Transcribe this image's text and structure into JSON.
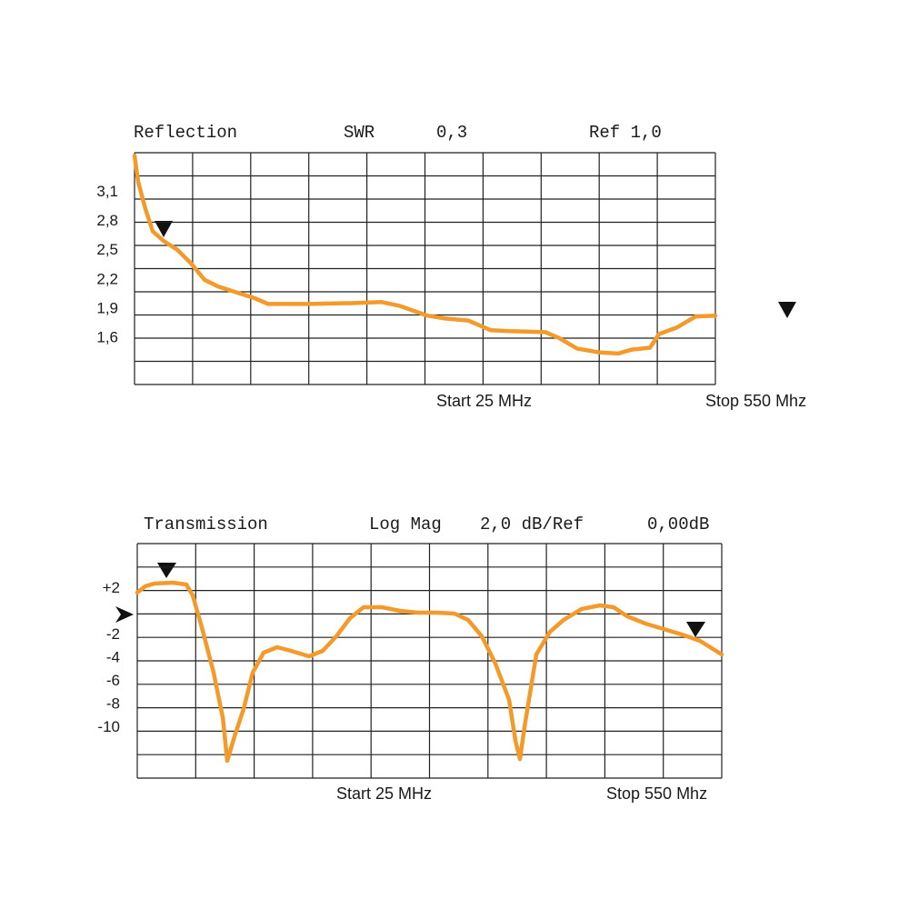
{
  "chart_data": [
    {
      "type": "line",
      "title": "Reflection",
      "format": "SWR",
      "scale": "0,3",
      "reference": "Ref 1,0",
      "start_label": "Start 25 MHz",
      "stop_label": "Stop 550 Mhz",
      "x": [
        25.0,
        28.3,
        34.9,
        41.4,
        51.3,
        63.6,
        75.9,
        88.3,
        100.6,
        117.0,
        133.5,
        145.8,
        182.7,
        223.8,
        248.5,
        264.9,
        289.6,
        306.0,
        326.5,
        347.1,
        363.5,
        396.4,
        408.7,
        425.1,
        445.7,
        462.1,
        474.4,
        490.9,
        499.1,
        515.5,
        532.0,
        550.0
      ],
      "series": [
        {
          "color": "#f39a2b",
          "values": [
            3.48,
            3.21,
            2.93,
            2.7,
            2.6,
            2.51,
            2.37,
            2.2,
            2.13,
            2.07,
            2.01,
            1.95,
            1.95,
            1.96,
            1.97,
            1.93,
            1.83,
            1.8,
            1.78,
            1.68,
            1.67,
            1.66,
            1.6,
            1.49,
            1.45,
            1.44,
            1.48,
            1.5,
            1.64,
            1.71,
            1.82,
            1.83
          ]
        }
      ],
      "xlim": [
        25,
        550
      ],
      "ylim": [
        1.12,
        3.51
      ],
      "yticks": [
        {
          "value": 3.1,
          "label": "3,1"
        },
        {
          "value": 2.8,
          "label": "2,8"
        },
        {
          "value": 2.5,
          "label": "2,5"
        },
        {
          "value": 2.2,
          "label": "2,2"
        },
        {
          "value": 1.9,
          "label": "1,9"
        },
        {
          "value": 1.6,
          "label": "1,6"
        }
      ]
    },
    {
      "type": "line",
      "title": "Transmission",
      "format": "Log Mag",
      "scale": "2,0 dB/Ref",
      "reference": "0,00dB",
      "start_label": "Start 25 MHz",
      "stop_label": "Stop 550 Mhz",
      "x": [
        25.0,
        32.3,
        40.5,
        56.8,
        69.1,
        74.8,
        83.0,
        93.6,
        101.9,
        105.8,
        112.4,
        120.5,
        128.7,
        138.5,
        150.7,
        163.0,
        179.3,
        191.6,
        203.8,
        216.1,
        228.3,
        244.6,
        261.0,
        277.3,
        293.6,
        309.9,
        322.2,
        334.5,
        346.7,
        359.0,
        364.7,
        368.7,
        372.8,
        383.4,
        395.7,
        407.9,
        424.3,
        440.6,
        452.8,
        465.1,
        481.4,
        497.8,
        514.1,
        530.4,
        550.0
      ],
      "series": [
        {
          "color": "#f39a2b",
          "values": [
            1.65,
            2.2,
            2.43,
            2.51,
            2.35,
            1.41,
            -1.33,
            -5.25,
            -9.18,
            -12.86,
            -10.75,
            -8.39,
            -5.25,
            -3.53,
            -3.06,
            -3.37,
            -3.84,
            -3.37,
            -2.12,
            -0.55,
            0.39,
            0.39,
            0.08,
            -0.08,
            -0.08,
            -0.16,
            -0.71,
            -2.12,
            -4.47,
            -7.61,
            -11.14,
            -12.71,
            -9.96,
            -3.69,
            -1.73,
            -0.71,
            0.24,
            0.55,
            0.39,
            -0.39,
            -1.02,
            -1.49,
            -1.96,
            -2.51,
            -3.69
          ]
        }
      ],
      "xlim": [
        25,
        550
      ],
      "ylim": [
        -14.35,
        5.88
      ],
      "yticks": [
        {
          "value": 2,
          "label": "+2"
        },
        -2,
        -4,
        -6,
        -8,
        -10
      ]
    }
  ]
}
